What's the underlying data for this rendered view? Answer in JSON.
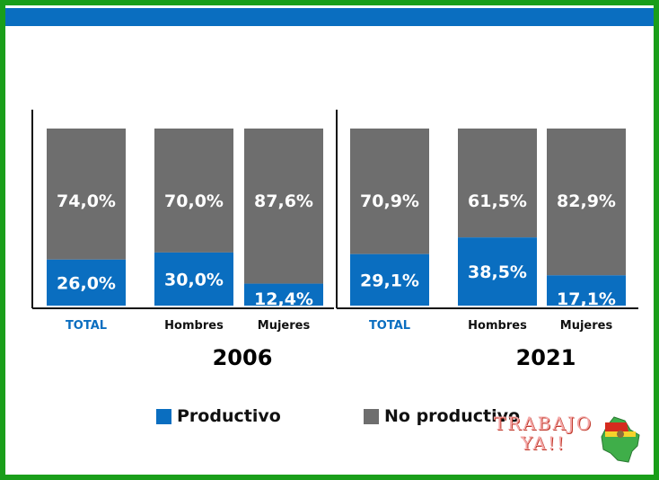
{
  "chart_data": {
    "type": "bar",
    "stacked": true,
    "groups": [
      {
        "year": "2006",
        "categories": [
          "TOTAL",
          "Hombres",
          "Mujeres"
        ],
        "productivo": [
          26.0,
          30.0,
          12.4
        ],
        "no_productivo": [
          74.0,
          70.0,
          87.6
        ],
        "productivo_labels": [
          "26,0%",
          "30,0%",
          "12,4%"
        ],
        "no_productivo_labels": [
          "74,0%",
          "70,0%",
          "87,6%"
        ]
      },
      {
        "year": "2021",
        "categories": [
          "TOTAL",
          "Hombres",
          "Mujeres"
        ],
        "productivo": [
          29.1,
          38.5,
          17.1
        ],
        "no_productivo": [
          70.9,
          61.5,
          82.9
        ],
        "productivo_labels": [
          "29,1%",
          "38,5%",
          "17,1%"
        ],
        "no_productivo_labels": [
          "70,9%",
          "61,5%",
          "82,9%"
        ]
      }
    ],
    "series": [
      {
        "name": "Productivo",
        "color": "#0a6ec0"
      },
      {
        "name": "No productivo",
        "color": "#6e6e6e"
      }
    ],
    "ylim": [
      0,
      100
    ],
    "grid": false,
    "legend_position": "bottom"
  },
  "legend": {
    "productivo": "Productivo",
    "no_productivo": "No productivo"
  },
  "brand": {
    "line1": "TRABAJO",
    "line2": "YA!!"
  },
  "colors": {
    "frame": "#1a9e1a",
    "topbar": "#0a6ec0",
    "productivo": "#0a6ec0",
    "no_productivo": "#6e6e6e",
    "total_label": "#0a6ec0"
  },
  "icons": {
    "brand_map": "bolivia-map-icon"
  }
}
